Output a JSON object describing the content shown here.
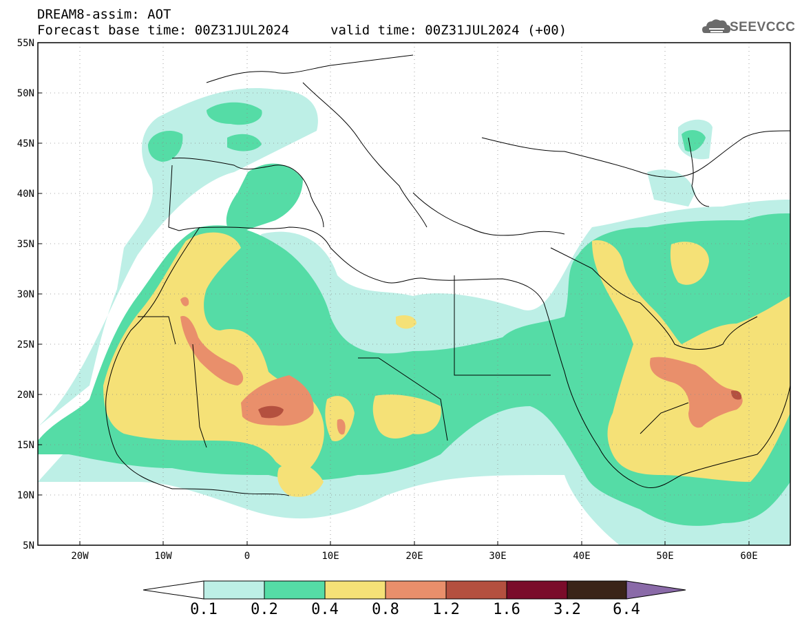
{
  "header": {
    "line1": "DREAM8-assim: AOT",
    "line2": "Forecast base time: 00Z31JUL2024",
    "valid": "valid time: 00Z31JUL2024 (+00)"
  },
  "logo": {
    "text": "SEEVCCC",
    "icon": "cloud-icon"
  },
  "map": {
    "lat_labels": [
      "55N",
      "50N",
      "45N",
      "40N",
      "35N",
      "30N",
      "25N",
      "20N",
      "15N",
      "10N",
      "5N"
    ],
    "lon_labels": [
      "20W",
      "10W",
      "0",
      "10E",
      "20E",
      "30E",
      "40E",
      "50E",
      "60E"
    ],
    "grid": true
  },
  "colorbar": {
    "levels": [
      "0.1",
      "0.2",
      "0.4",
      "0.8",
      "1.2",
      "1.6",
      "3.2",
      "6.4"
    ],
    "colors": [
      "#ffffff",
      "#bdefe6",
      "#55dca6",
      "#f5e177",
      "#e98f6b",
      "#b4503f",
      "#7a0c2a",
      "#3a2418",
      "#8a6aa8"
    ]
  }
}
